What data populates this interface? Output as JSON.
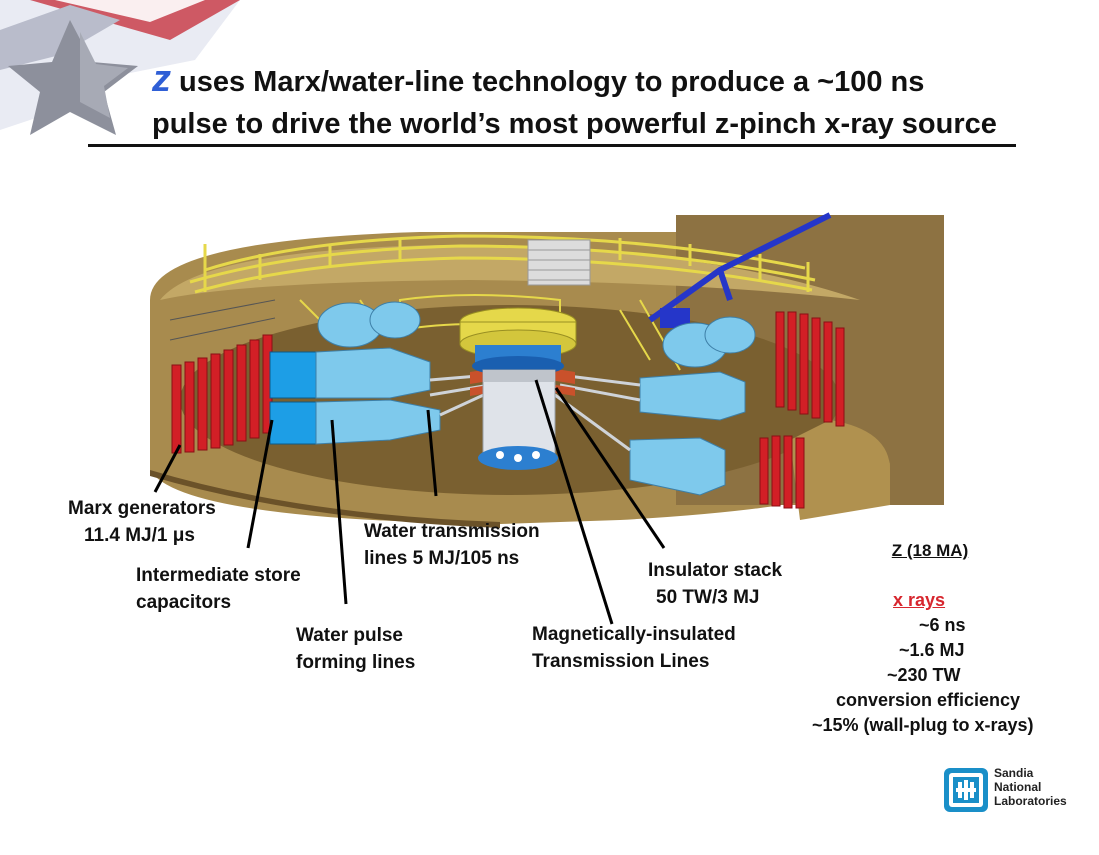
{
  "slide": {
    "title_z": "z",
    "title_line1": "uses Marx/water-line technology to produce a ~100 ns",
    "title_line2": "pulse to drive the world’s most powerful z-pinch x-ray source"
  },
  "labels": {
    "marx_1": "Marx generators",
    "marx_2": "11.4 MJ/1 μs",
    "intermediate_1": "Intermediate store",
    "intermediate_2": "capacitors",
    "water_pulse_1": "Water pulse",
    "water_pulse_2": "forming lines",
    "water_trans_1": "Water transmission",
    "water_trans_2": "lines 5 MJ/105 ns",
    "mitl_1": "Magnetically-insulated",
    "mitl_2": "Transmission Lines",
    "insulator_1": "Insulator stack",
    "insulator_2": "50 TW/3 MJ"
  },
  "specs": {
    "heading": "Z (18 MA)",
    "xrays_heading": "x rays",
    "lines": [
      "~6 ns",
      "~1.6 MJ",
      "~230 TW",
      "conversion efficiency",
      "~15% (wall-plug to x-rays)"
    ]
  },
  "logo": {
    "line1": "Sandia",
    "line2": "National",
    "line3": "Laboratories"
  },
  "colors": {
    "accent_blue": "#2f5fd6",
    "marx_red": "#d21f26",
    "tank_brown": "#a88b4e",
    "catwalk_yellow": "#e6d84a",
    "water_line_blue": "#7ec9ec",
    "logo_blue": "#1a8fc8"
  }
}
